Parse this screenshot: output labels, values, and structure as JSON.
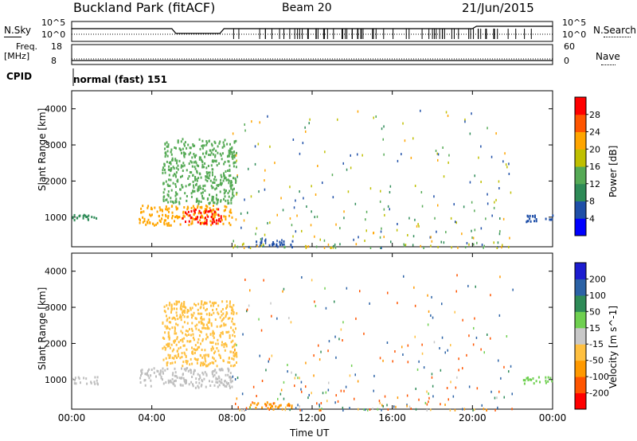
{
  "header": {
    "station": "Buckland Park (fitACF)",
    "beam": "Beam 20",
    "date": "21/Jun/2015"
  },
  "noise_panel": {
    "left_label": "N.Sky",
    "left_ticks": [
      "10^5",
      "10^0"
    ],
    "right_label": "N.Search",
    "right_ticks": [
      "10^5",
      "10^0"
    ]
  },
  "freq_panel": {
    "left_label_line1": "Freq.",
    "left_label_line2": "[MHz]",
    "left_ticks": [
      "18",
      "8"
    ],
    "right_label": "Nave",
    "right_ticks": [
      "60",
      "0"
    ]
  },
  "cpid_panel": {
    "label": "CPID",
    "mode": "normal (fast) 151"
  },
  "x_axis": {
    "title": "Time UT",
    "ticks": [
      "00:00",
      "04:00",
      "08:00",
      "12:00",
      "16:00",
      "20:00",
      "00:00"
    ]
  },
  "colors": {
    "power_scale": [
      "#0000ff",
      "#1f4fa8",
      "#2e8b57",
      "#55aa55",
      "#bfbf00",
      "#ffa500",
      "#ff5500",
      "#ff0000"
    ],
    "velocity_scale": [
      "#1c1cd0",
      "#2b62a6",
      "#2e8b57",
      "#6fd050",
      "#c8c8c8",
      "#ffc040",
      "#ff9900",
      "#ff5500",
      "#ff0000"
    ],
    "ground_scatter": "#bebebe"
  },
  "chart_data": [
    {
      "type": "heatmap",
      "title": "Power",
      "ylabel": "Slant Range [km]",
      "xlabel": "",
      "x_range_hours": [
        0,
        24
      ],
      "ylim": [
        180,
        4500
      ],
      "y_ticks": [
        "1000",
        "2000",
        "3000",
        "4000"
      ],
      "colorbar": {
        "label": "Power [dB]",
        "range": [
          0,
          30
        ],
        "ticks": [
          "4",
          "8",
          "12",
          "16",
          "20",
          "24",
          "28"
        ]
      },
      "regions": [
        {
          "t0": 0.0,
          "t1": 1.2,
          "r0": 900,
          "r1": 1100,
          "value": 10
        },
        {
          "t0": 3.3,
          "t1": 8.0,
          "r0": 800,
          "r1": 1350,
          "value": 22
        },
        {
          "t0": 5.5,
          "t1": 7.5,
          "r0": 850,
          "r1": 1250,
          "value": 28
        },
        {
          "t0": 4.5,
          "t1": 8.2,
          "r0": 1400,
          "r1": 3200,
          "value": 14
        },
        {
          "t0": 8.8,
          "t1": 11.0,
          "r0": 200,
          "r1": 400,
          "value": 6
        },
        {
          "t0": 22.5,
          "t1": 24.0,
          "r0": 900,
          "r1": 1100,
          "value": 5
        }
      ]
    },
    {
      "type": "heatmap",
      "title": "Velocity",
      "ylabel": "Slant Range [km]",
      "xlabel": "Time UT",
      "x_range_hours": [
        0,
        24
      ],
      "ylim": [
        180,
        4500
      ],
      "y_ticks": [
        "1000",
        "2000",
        "3000",
        "4000"
      ],
      "colorbar": {
        "label": "Velocity [m s^-1]",
        "range": [
          -250,
          250
        ],
        "ticks": [
          "200",
          "100",
          "50",
          "15",
          "-15",
          "-50",
          "-100",
          "-200"
        ]
      },
      "regions": [
        {
          "t0": 0.0,
          "t1": 1.3,
          "r0": 900,
          "r1": 1100,
          "value": "ground"
        },
        {
          "t0": 3.3,
          "t1": 8.0,
          "r0": 800,
          "r1": 1350,
          "value": "ground"
        },
        {
          "t0": 4.5,
          "t1": 8.2,
          "r0": 1400,
          "r1": 3200,
          "value": -40
        },
        {
          "t0": 8.8,
          "t1": 11.0,
          "r0": 200,
          "r1": 400,
          "value": -60
        },
        {
          "t0": 22.5,
          "t1": 24.0,
          "r0": 900,
          "r1": 1100,
          "value": 40
        }
      ]
    }
  ]
}
